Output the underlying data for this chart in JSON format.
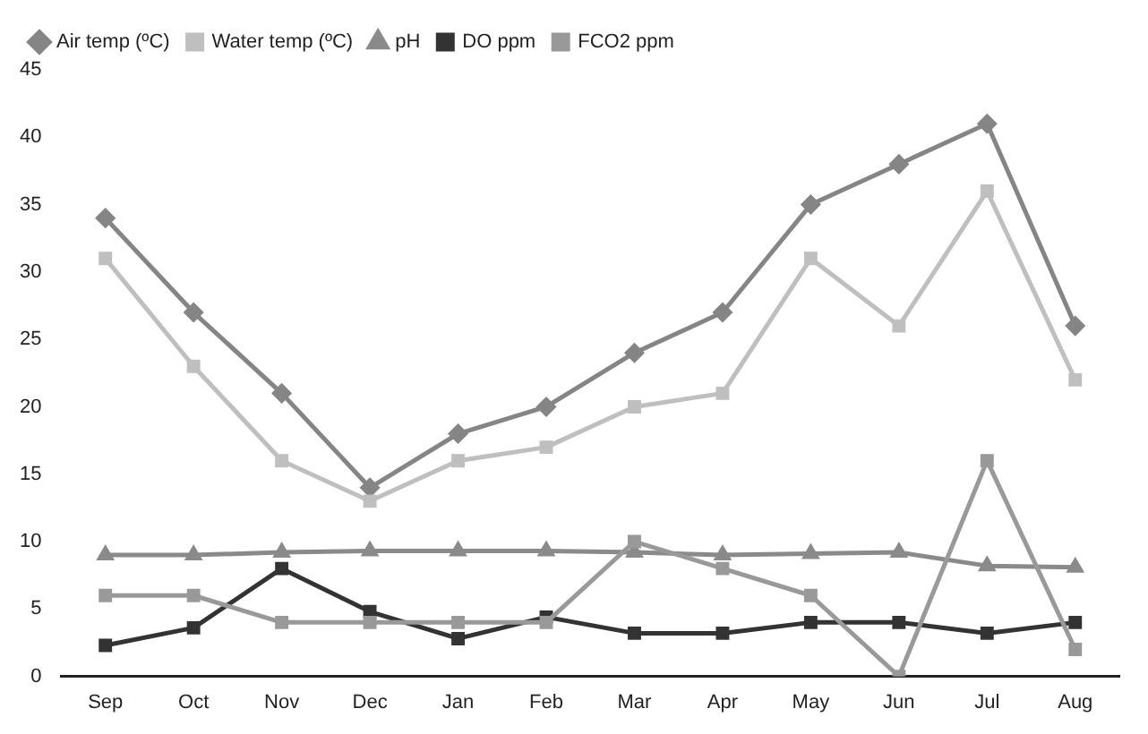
{
  "chart_data": {
    "type": "line",
    "categories": [
      "Sep",
      "Oct",
      "Nov",
      "Dec",
      "Jan",
      "Feb",
      "Mar",
      "Apr",
      "May",
      "Jun",
      "Jul",
      "Aug"
    ],
    "series": [
      {
        "name": "Air temp (ºC)",
        "color": "#858585",
        "marker": "diamond",
        "values": [
          34,
          27,
          21,
          14,
          18,
          20,
          24,
          27,
          35,
          38,
          41,
          26
        ]
      },
      {
        "name": "Water temp (ºC)",
        "color": "#bfbfbf",
        "marker": "square",
        "values": [
          31,
          23,
          16,
          13,
          16,
          17,
          20,
          21,
          31,
          26,
          36,
          22
        ]
      },
      {
        "name": "pH",
        "color": "#8a8a8a",
        "marker": "triangle",
        "values": [
          9,
          9,
          9.2,
          9.3,
          9.3,
          9.3,
          9.2,
          9,
          9.1,
          9.2,
          8.2,
          8.1
        ]
      },
      {
        "name": "DO ppm",
        "color": "#333333",
        "marker": "square",
        "values": [
          2.3,
          3.6,
          8,
          4.8,
          2.8,
          4.4,
          3.2,
          3.2,
          4,
          4,
          3.2,
          4
        ]
      },
      {
        "name": "FCO2 ppm",
        "color": "#999999",
        "marker": "square",
        "values": [
          6,
          6,
          4,
          4,
          4,
          4,
          10,
          8,
          6,
          0,
          16,
          2
        ]
      }
    ],
    "ylim": [
      0,
      45
    ],
    "yticks": [
      0,
      5,
      10,
      15,
      20,
      25,
      30,
      35,
      40,
      45
    ],
    "grid": false,
    "legend": "top left"
  }
}
